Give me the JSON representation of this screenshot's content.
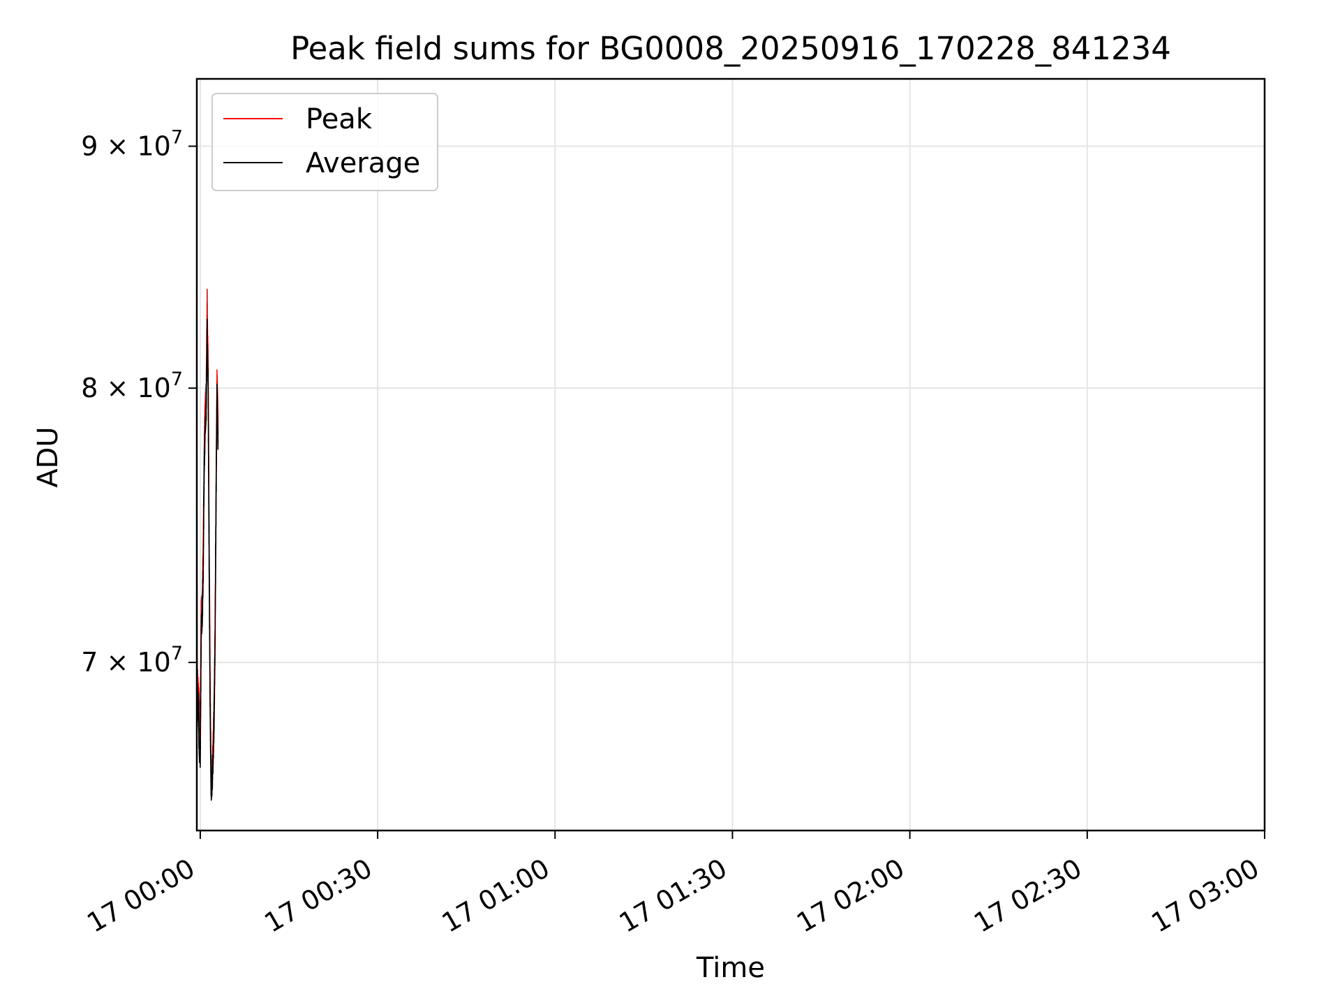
{
  "chart_data": {
    "type": "line",
    "title": "Peak field sums for BG0008_20250916_170228_841234",
    "xlabel": "Time",
    "ylabel": "ADU",
    "x_range": [
      "16 23:59:25",
      "17 03:00:00"
    ],
    "y_range": [
      64500000,
      93000000
    ],
    "y_scale": "log",
    "grid": true,
    "legend_position": "upper-left",
    "x_ticks": [
      {
        "value": "17 00:00",
        "label": "17 00:00"
      },
      {
        "value": "17 00:30",
        "label": "17 00:30"
      },
      {
        "value": "17 01:00",
        "label": "17 01:00"
      },
      {
        "value": "17 01:30",
        "label": "17 01:30"
      },
      {
        "value": "17 02:00",
        "label": "17 02:00"
      },
      {
        "value": "17 02:30",
        "label": "17 02:30"
      },
      {
        "value": "17 03:00",
        "label": "17 03:00"
      }
    ],
    "y_ticks": [
      {
        "value": 70000000,
        "label": "7 × 10",
        "exp": "7"
      },
      {
        "value": 80000000,
        "label": "8 × 10",
        "exp": "7"
      },
      {
        "value": 90000000,
        "label": "9 × 10",
        "exp": "7"
      }
    ],
    "x": [
      "16 23:59:25",
      "16 23:59:30",
      "16 23:59:40",
      "16 23:59:50",
      "17 00:00:00",
      "17 00:00:10",
      "17 00:00:20",
      "17 00:00:30",
      "17 00:00:40",
      "17 00:00:50",
      "17 00:01:00",
      "17 00:01:10",
      "17 00:01:20",
      "17 00:01:30",
      "17 00:01:40",
      "17 00:01:50",
      "17 00:02:00",
      "17 00:02:10",
      "17 00:02:20",
      "17 00:02:30",
      "17 00:02:40",
      "17 00:02:50",
      "17 00:03:00"
    ],
    "series": [
      {
        "name": "Peak",
        "color": "#ff0000",
        "values": [
          78500000,
          69500000,
          69000000,
          68500000,
          67500000,
          71800000,
          72000000,
          74000000,
          77500000,
          79300000,
          79800000,
          83500000,
          80500000,
          74500000,
          69000000,
          66300000,
          66400000,
          67200000,
          68500000,
          71000000,
          76000000,
          80500000,
          78500000
        ]
      },
      {
        "name": "Average",
        "color": "#000000",
        "values": [
          67000000,
          69000000,
          68500000,
          67000000,
          66800000,
          71200000,
          71500000,
          73000000,
          77000000,
          78500000,
          79200000,
          82500000,
          80000000,
          73500000,
          68500000,
          65800000,
          66000000,
          66800000,
          68000000,
          70500000,
          75500000,
          80000000,
          78000000
        ]
      }
    ]
  }
}
